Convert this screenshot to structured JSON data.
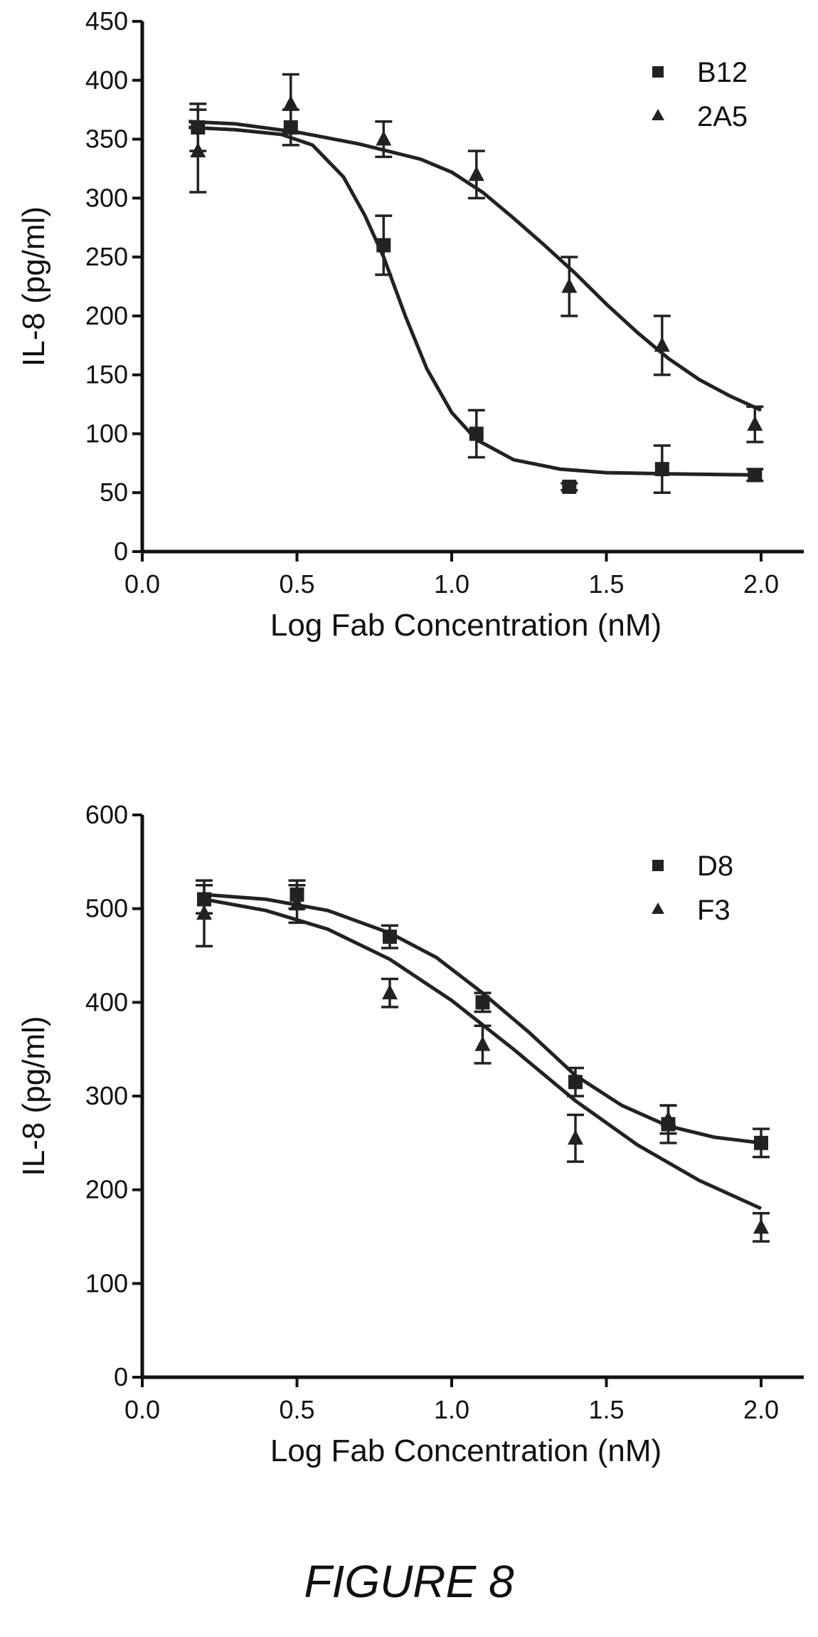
{
  "caption": "FIGURE 8",
  "chart_data": [
    {
      "type": "line",
      "title": "",
      "xlabel": "Log Fab Concentration (nM)",
      "ylabel": "IL-8 (pg/ml)",
      "xlim": [
        0.0,
        2.0
      ],
      "ylim": [
        0,
        450
      ],
      "xticks": [
        "0.0",
        "0.5",
        "1.0",
        "1.5",
        "2.0"
      ],
      "yticks": [
        "0",
        "50",
        "100",
        "150",
        "200",
        "250",
        "300",
        "350",
        "400",
        "450"
      ],
      "legend_position": "top-right",
      "series": [
        {
          "name": "B12",
          "marker": "square",
          "points": [
            {
              "x": 0.18,
              "y": 360,
              "err": 20
            },
            {
              "x": 0.48,
              "y": 360,
              "err": 15
            },
            {
              "x": 0.78,
              "y": 260,
              "err": 25
            },
            {
              "x": 1.08,
              "y": 100,
              "err": 20
            },
            {
              "x": 1.38,
              "y": 55,
              "err": 3
            },
            {
              "x": 1.68,
              "y": 70,
              "err": 20
            },
            {
              "x": 1.98,
              "y": 65,
              "err": 5
            }
          ],
          "curve": [
            [
              0.15,
              360
            ],
            [
              0.3,
              358
            ],
            [
              0.45,
              354
            ],
            [
              0.55,
              345
            ],
            [
              0.65,
              318
            ],
            [
              0.72,
              285
            ],
            [
              0.78,
              250
            ],
            [
              0.85,
              200
            ],
            [
              0.92,
              155
            ],
            [
              1.0,
              118
            ],
            [
              1.08,
              95
            ],
            [
              1.2,
              78
            ],
            [
              1.35,
              70
            ],
            [
              1.5,
              67
            ],
            [
              1.7,
              66
            ],
            [
              2.0,
              65
            ]
          ]
        },
        {
          "name": "2A5",
          "marker": "triangle",
          "points": [
            {
              "x": 0.18,
              "y": 340,
              "err": 35
            },
            {
              "x": 0.48,
              "y": 380,
              "err": 25
            },
            {
              "x": 0.78,
              "y": 350,
              "err": 15
            },
            {
              "x": 1.08,
              "y": 320,
              "err": 20
            },
            {
              "x": 1.38,
              "y": 225,
              "err": 25
            },
            {
              "x": 1.68,
              "y": 175,
              "err": 25
            },
            {
              "x": 1.98,
              "y": 108,
              "err": 15
            }
          ],
          "curve": [
            [
              0.15,
              365
            ],
            [
              0.3,
              363
            ],
            [
              0.5,
              356
            ],
            [
              0.7,
              346
            ],
            [
              0.9,
              333
            ],
            [
              1.0,
              322
            ],
            [
              1.1,
              305
            ],
            [
              1.2,
              283
            ],
            [
              1.3,
              260
            ],
            [
              1.4,
              236
            ],
            [
              1.5,
              210
            ],
            [
              1.6,
              186
            ],
            [
              1.7,
              164
            ],
            [
              1.8,
              146
            ],
            [
              1.9,
              132
            ],
            [
              2.0,
              120
            ]
          ]
        }
      ]
    },
    {
      "type": "line",
      "title": "",
      "xlabel": "Log Fab Concentration (nM)",
      "ylabel": "IL-8 (pg/ml)",
      "xlim": [
        0.0,
        2.0
      ],
      "ylim": [
        0,
        600
      ],
      "xticks": [
        "0.0",
        "0.5",
        "1.0",
        "1.5",
        "2.0"
      ],
      "yticks": [
        "0",
        "100",
        "200",
        "300",
        "400",
        "500",
        "600"
      ],
      "legend_position": "top-right",
      "series": [
        {
          "name": "D8",
          "marker": "square",
          "points": [
            {
              "x": 0.2,
              "y": 510,
              "err": 15
            },
            {
              "x": 0.5,
              "y": 515,
              "err": 15
            },
            {
              "x": 0.8,
              "y": 470,
              "err": 12
            },
            {
              "x": 1.1,
              "y": 400,
              "err": 10
            },
            {
              "x": 1.4,
              "y": 315,
              "err": 15
            },
            {
              "x": 1.7,
              "y": 270,
              "err": 20
            },
            {
              "x": 2.0,
              "y": 250,
              "err": 15
            }
          ],
          "curve": [
            [
              0.2,
              515
            ],
            [
              0.4,
              510
            ],
            [
              0.6,
              498
            ],
            [
              0.8,
              474
            ],
            [
              0.95,
              448
            ],
            [
              1.1,
              410
            ],
            [
              1.25,
              368
            ],
            [
              1.4,
              322
            ],
            [
              1.55,
              290
            ],
            [
              1.7,
              268
            ],
            [
              1.85,
              256
            ],
            [
              2.0,
              250
            ]
          ]
        },
        {
          "name": "F3",
          "marker": "triangle",
          "points": [
            {
              "x": 0.2,
              "y": 495,
              "err": 35
            },
            {
              "x": 0.5,
              "y": 505,
              "err": 20
            },
            {
              "x": 0.8,
              "y": 410,
              "err": 15
            },
            {
              "x": 1.1,
              "y": 355,
              "err": 20
            },
            {
              "x": 1.4,
              "y": 255,
              "err": 25
            },
            {
              "x": 1.7,
              "y": 275,
              "err": 15
            },
            {
              "x": 2.0,
              "y": 160,
              "err": 15
            }
          ],
          "curve": [
            [
              0.2,
              510
            ],
            [
              0.4,
              498
            ],
            [
              0.6,
              478
            ],
            [
              0.8,
              446
            ],
            [
              1.0,
              402
            ],
            [
              1.2,
              350
            ],
            [
              1.4,
              295
            ],
            [
              1.6,
              248
            ],
            [
              1.8,
              210
            ],
            [
              2.0,
              180
            ]
          ]
        }
      ]
    }
  ]
}
